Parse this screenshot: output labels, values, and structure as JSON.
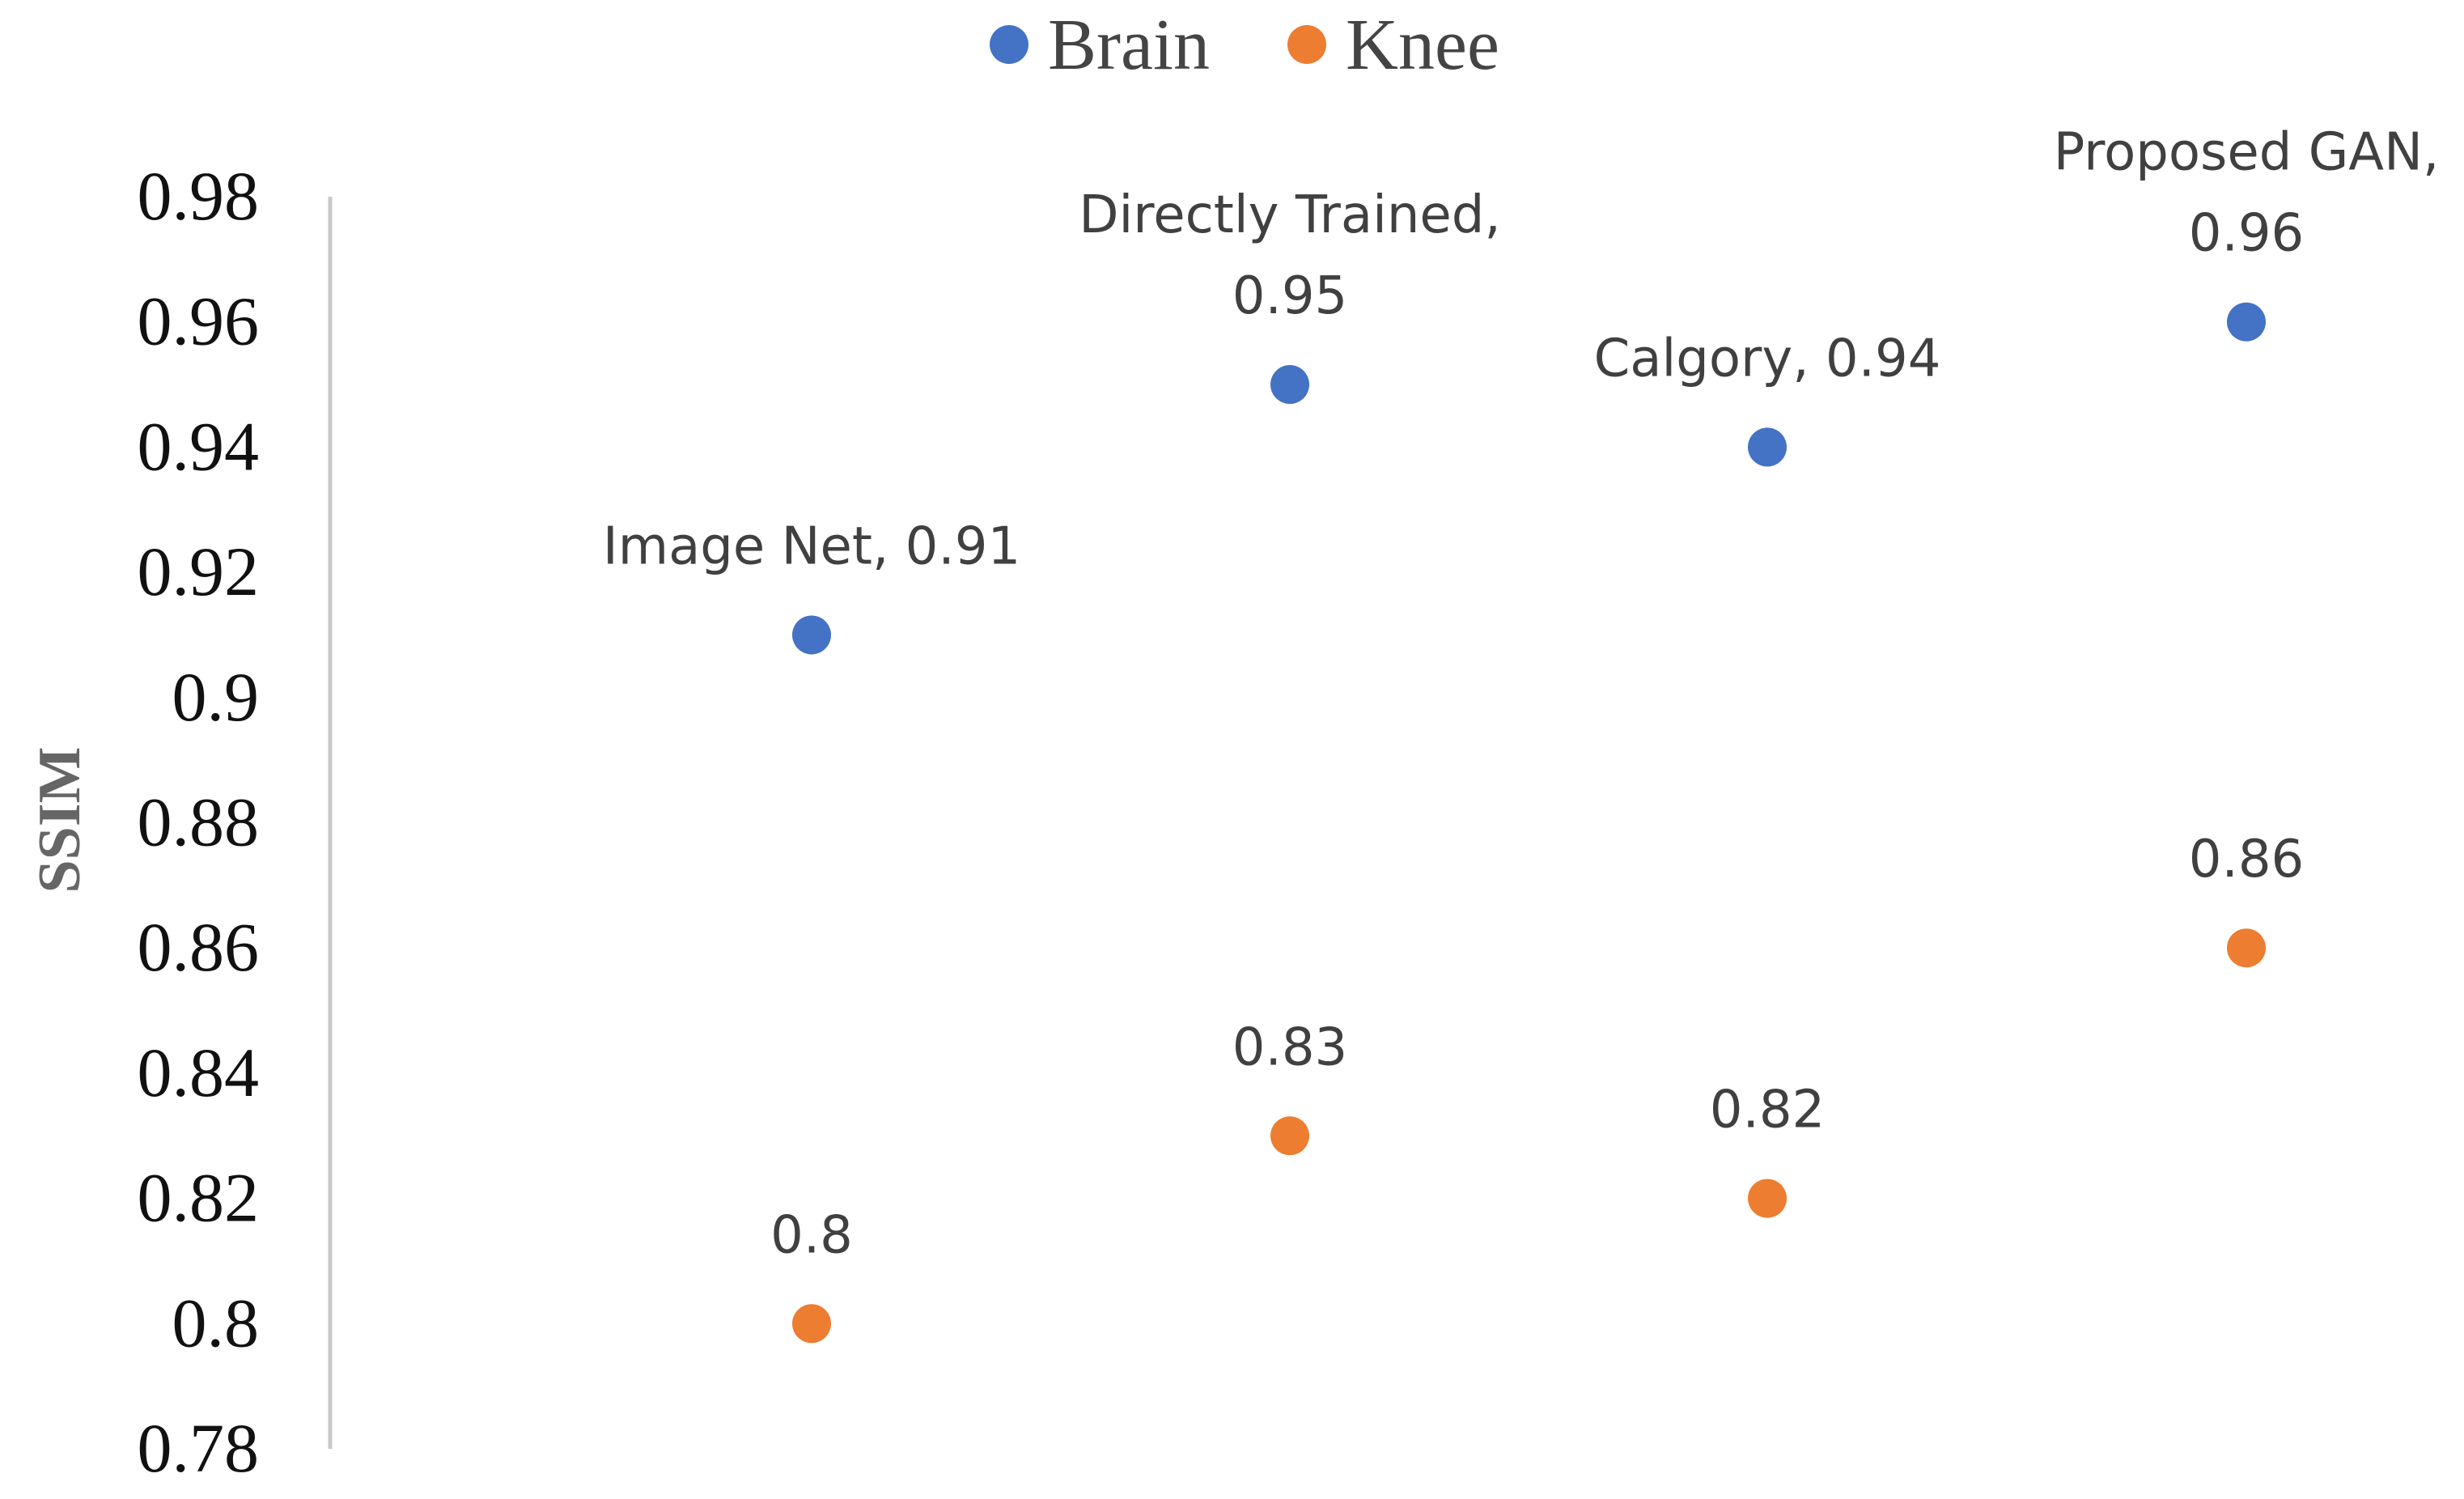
{
  "chart_data": {
    "type": "scatter",
    "title": "",
    "xlabel": "",
    "ylabel": "SSIM",
    "ylim": [
      0.78,
      0.98
    ],
    "yticks": [
      0.98,
      0.96,
      0.94,
      0.92,
      0.9,
      0.88,
      0.86,
      0.84,
      0.82,
      0.8,
      0.78
    ],
    "ytick_labels": [
      "0.98",
      "0.96",
      "0.94",
      "0.92",
      "0.9",
      "0.88",
      "0.86",
      "0.84",
      "0.82",
      "0.8",
      "0.78"
    ],
    "x": [
      1,
      2,
      3,
      4
    ],
    "grid": false,
    "legend_position": "top-center",
    "series": [
      {
        "name": "Brain",
        "color": "#4472C4",
        "values": [
          0.91,
          0.95,
          0.94,
          0.96
        ],
        "labels": [
          [
            "Image Net, 0.91"
          ],
          [
            "Directly Trained,",
            "0.95"
          ],
          [
            "Calgory, 0.94"
          ],
          [
            "Proposed GAN,",
            "0.96"
          ]
        ]
      },
      {
        "name": "Knee",
        "color": "#ED7D31",
        "values": [
          0.8,
          0.83,
          0.82,
          0.86
        ],
        "labels": [
          [
            "0.8"
          ],
          [
            "0.83"
          ],
          [
            "0.82"
          ],
          [
            "0.86"
          ]
        ]
      }
    ]
  }
}
